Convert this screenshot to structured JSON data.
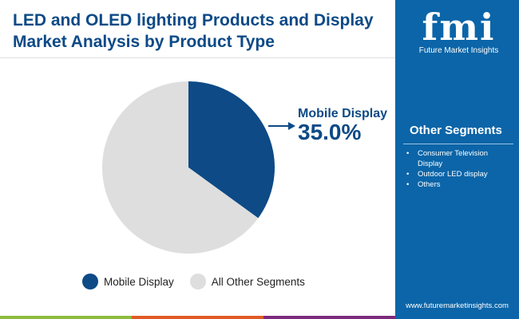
{
  "title": "LED and OLED lighting Products and Display Market Analysis by Product Type",
  "brand": {
    "logo_text": "fmi",
    "name": "Future Market Insights",
    "url": "www.futuremarketinsights.com"
  },
  "other_segments": {
    "title": "Other Segments",
    "items": [
      "Consumer Television Display",
      "Outdoor LED display",
      "Others"
    ]
  },
  "colors": {
    "primary": "#0d4a86",
    "other": "#dedede",
    "panel": "#0b65a8",
    "bars": [
      "#8cbb3d",
      "#e15a26",
      "#7d2a7d"
    ]
  },
  "chart_data": {
    "type": "pie",
    "slices": [
      {
        "label": "Mobile Display",
        "value": 35.0,
        "color": "#0d4a86"
      },
      {
        "label": "All Other Segments",
        "value": 65.0,
        "color": "#dedede"
      }
    ],
    "callout": {
      "label": "Mobile Display",
      "value_text": "35.0%"
    },
    "legend": "bottom"
  }
}
